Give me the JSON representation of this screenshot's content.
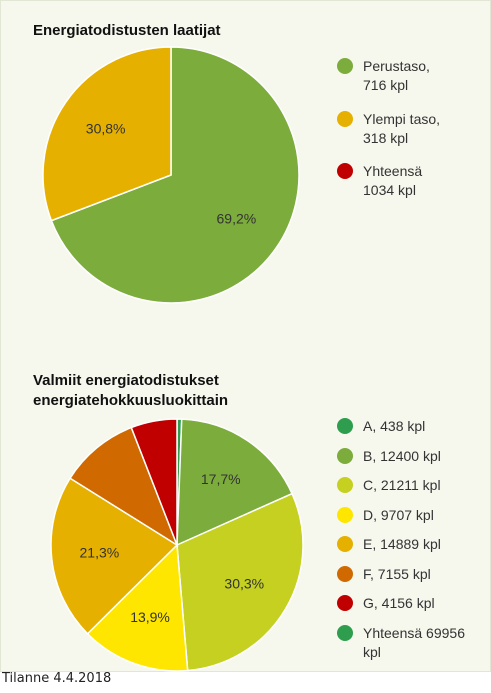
{
  "chart_data": [
    {
      "type": "pie",
      "title": "Energiatodistusten laatijat",
      "categories": [
        "Perustaso, 716 kpl",
        "Ylempi taso, 318 kpl"
      ],
      "values": [
        69.2,
        30.8
      ],
      "value_labels": [
        "69,2%",
        "30,8%"
      ],
      "colors": [
        "#7cac3c",
        "#e6b000"
      ],
      "total": {
        "label": "Yhteensä 1034 kpl",
        "color": "#c00000"
      }
    },
    {
      "type": "pie",
      "title": "Valmiit energiatodistukset energiatehokkuusluokittain",
      "categories": [
        "A, 438 kpl",
        "B, 12400 kpl",
        "C, 21211 kpl",
        "D, 9707 kpl",
        "E, 14889 kpl",
        "F, 7155 kpl",
        "G, 4156 kpl"
      ],
      "values": [
        0.6,
        17.7,
        30.3,
        13.9,
        21.3,
        10.2,
        5.9
      ],
      "value_labels": [
        null,
        "17,7%",
        "30,3%",
        "13,9%",
        "21,3%",
        null,
        null
      ],
      "colors": [
        "#2e9e4e",
        "#7cac3c",
        "#c5d020",
        "#ffe600",
        "#e6b000",
        "#d06a00",
        "#c00000"
      ],
      "total": {
        "label": "Yhteensä 69956 kpl",
        "color": "#2e9e4e"
      }
    }
  ],
  "footer": "Tilanne 4.4.2018"
}
